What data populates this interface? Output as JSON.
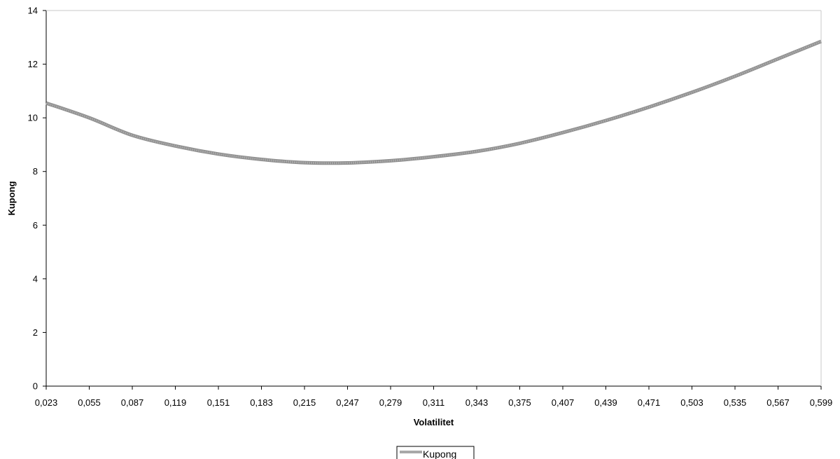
{
  "chart_data": {
    "type": "line",
    "title": "",
    "xlabel": "Volatilitet",
    "ylabel": "Kupong",
    "x_ticks": [
      "0,023",
      "0,055",
      "0,087",
      "0,119",
      "0,151",
      "0,183",
      "0,215",
      "0,247",
      "0,279",
      "0,311",
      "0,343",
      "0,375",
      "0,407",
      "0,439",
      "0,471",
      "0,503",
      "0,535",
      "0,567",
      "0,599"
    ],
    "y_ticks": [
      "0",
      "2",
      "4",
      "6",
      "8",
      "10",
      "12",
      "14"
    ],
    "ylim": [
      0,
      14
    ],
    "xlim": [
      0.023,
      0.599
    ],
    "grid": false,
    "legend_position": "bottom-center",
    "series": [
      {
        "name": "Kupong",
        "color": "#a8a8a8",
        "x": [
          0.023,
          0.055,
          0.087,
          0.119,
          0.151,
          0.183,
          0.215,
          0.247,
          0.279,
          0.311,
          0.343,
          0.375,
          0.407,
          0.439,
          0.471,
          0.503,
          0.535,
          0.567,
          0.599
        ],
        "y": [
          10.55,
          10.0,
          9.35,
          8.95,
          8.65,
          8.45,
          8.33,
          8.32,
          8.4,
          8.55,
          8.75,
          9.05,
          9.45,
          9.9,
          10.4,
          10.95,
          11.55,
          12.2,
          12.85
        ]
      }
    ]
  }
}
